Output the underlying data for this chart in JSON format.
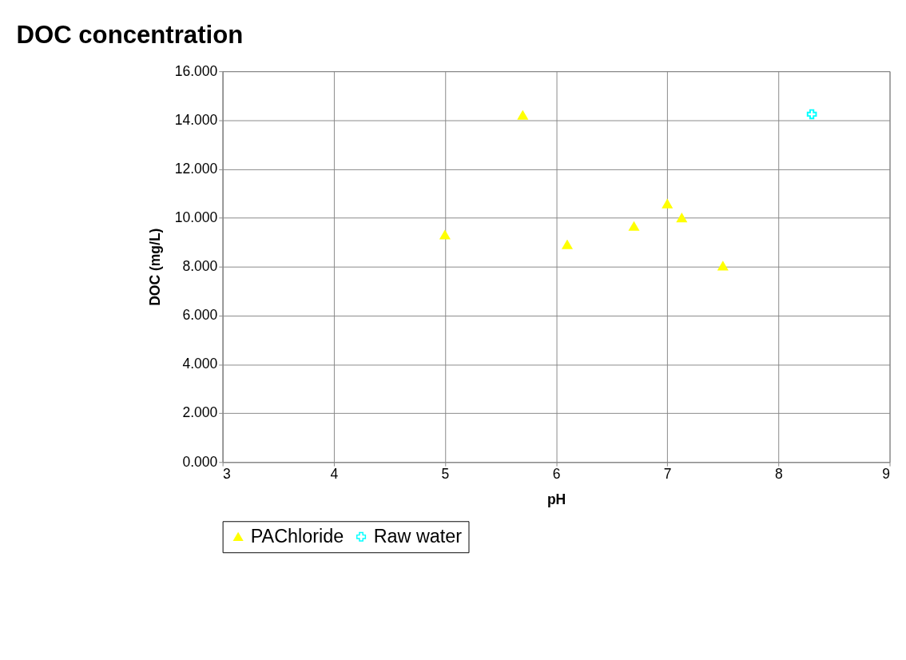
{
  "chart_data": {
    "type": "scatter",
    "title": "DOC concentration",
    "xlabel": "pH",
    "ylabel": "DOC (mg/L)",
    "series": [
      {
        "name": "PAChloride",
        "color": "#ffff00",
        "marker": "triangle",
        "x": [
          5.0,
          5.7,
          6.1,
          6.7,
          7.0,
          7.13,
          7.5
        ],
        "values": [
          9.3,
          14.2,
          8.9,
          9.65,
          10.57,
          10.0,
          8.03
        ]
      },
      {
        "name": "Raw water",
        "color": "#00ffff",
        "marker": "cross",
        "x": [
          8.3
        ],
        "values": [
          14.24
        ]
      }
    ],
    "xlim": [
      3,
      9
    ],
    "xticks": [
      3,
      4,
      5,
      6,
      7,
      8,
      9
    ],
    "ylim": [
      0,
      16
    ],
    "yticks": [
      {
        "value": 0,
        "label": "0.000"
      },
      {
        "value": 2,
        "label": "2.000"
      },
      {
        "value": 4,
        "label": "4.000"
      },
      {
        "value": 6,
        "label": "6.000"
      },
      {
        "value": 8,
        "label": "8.000"
      },
      {
        "value": 10,
        "label": "10.000"
      },
      {
        "value": 12,
        "label": "12.000"
      },
      {
        "value": 14,
        "label": "14.000"
      },
      {
        "value": 16,
        "label": "16.000"
      }
    ],
    "grid": true,
    "legend": "bottom"
  }
}
